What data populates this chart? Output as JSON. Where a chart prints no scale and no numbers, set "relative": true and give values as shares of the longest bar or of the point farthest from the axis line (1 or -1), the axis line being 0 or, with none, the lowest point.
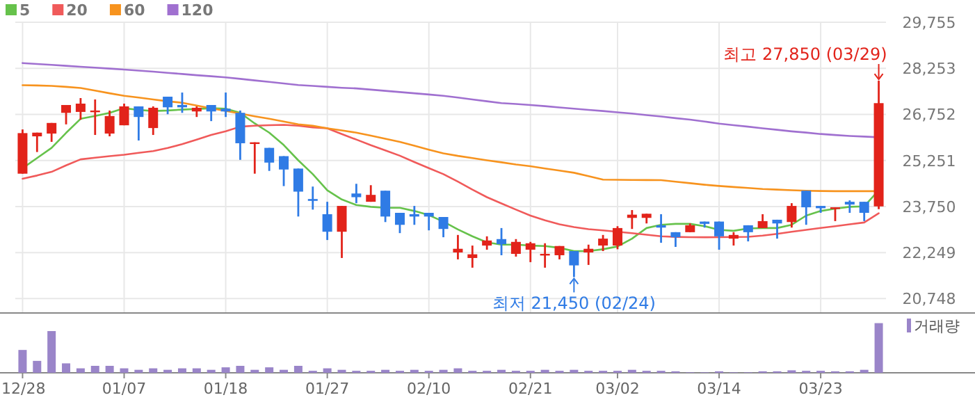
{
  "chart_data": [
    {
      "type": "candlestick",
      "categories": [
        null,
        null,
        null,
        null,
        null,
        null,
        null,
        null,
        null,
        null,
        null,
        null,
        null,
        null,
        null,
        null,
        null,
        null,
        null,
        null,
        null,
        null,
        null,
        null,
        null,
        null,
        null,
        null,
        null,
        null,
        null,
        null,
        null,
        null,
        null,
        null,
        null,
        null,
        null,
        null,
        null,
        null,
        null,
        null,
        null,
        null,
        null,
        null,
        null,
        null,
        null,
        null,
        null,
        null,
        null,
        null,
        null,
        null,
        null,
        null
      ],
      "ohlc": [
        [
          24820,
          26262,
          24820,
          26142
        ],
        [
          26037,
          26157,
          25526,
          26157
        ],
        [
          26127,
          26473,
          25857,
          26473
        ],
        [
          26803,
          27058,
          26427,
          27058
        ],
        [
          26833,
          27284,
          26578,
          27103
        ],
        [
          26833,
          27239,
          26082,
          26878
        ],
        [
          26127,
          26878,
          26037,
          26698
        ],
        [
          26397,
          27103,
          26397,
          27013
        ],
        [
          27013,
          27013,
          25902,
          26668
        ],
        [
          26307,
          27013,
          26082,
          26968
        ],
        [
          27329,
          27329,
          26758,
          26983
        ],
        [
          27058,
          27464,
          26803,
          26983
        ],
        [
          26848,
          27013,
          26668,
          26968
        ],
        [
          27058,
          27058,
          26533,
          26848
        ],
        [
          26938,
          27464,
          26668,
          26848
        ],
        [
          26803,
          26878,
          25271,
          25812
        ],
        [
          25812,
          25842,
          24820,
          25842
        ],
        [
          25661,
          25661,
          24910,
          25181
        ],
        [
          25391,
          25391,
          24415,
          24956
        ],
        [
          24986,
          24986,
          23424,
          24235
        ],
        [
          23994,
          24400,
          23649,
          23934
        ],
        [
          23499,
          23904,
          22658,
          22928
        ],
        [
          22928,
          23769,
          22072,
          23769
        ],
        [
          24174,
          24490,
          23859,
          24054
        ],
        [
          23904,
          24445,
          23904,
          24129
        ],
        [
          24265,
          24265,
          23243,
          23423
        ],
        [
          23544,
          23544,
          22883,
          23153
        ],
        [
          23499,
          23769,
          23153,
          23423
        ],
        [
          23544,
          23544,
          22973,
          23423
        ],
        [
          23408,
          23408,
          22748,
          23018
        ],
        [
          22252,
          22823,
          22027,
          22372
        ],
        [
          22072,
          22477,
          21756,
          22192
        ],
        [
          22477,
          22778,
          22342,
          22642
        ],
        [
          22688,
          23048,
          22162,
          22522
        ],
        [
          22207,
          22688,
          22117,
          22597
        ],
        [
          22342,
          22597,
          21937,
          22552
        ],
        [
          22162,
          22552,
          21756,
          22207
        ],
        [
          22162,
          22462,
          22027,
          22462
        ],
        [
          22297,
          22297,
          21450,
          21831
        ],
        [
          22252,
          22507,
          21846,
          22372
        ],
        [
          22478,
          22823,
          22297,
          22703
        ],
        [
          22478,
          23108,
          22357,
          23048
        ],
        [
          23379,
          23634,
          23018,
          23484
        ],
        [
          23379,
          23514,
          23198,
          23514
        ],
        [
          23138,
          23499,
          22568,
          23063
        ],
        [
          22913,
          22913,
          22433,
          22748
        ],
        [
          22913,
          23198,
          22913,
          23138
        ],
        [
          23259,
          23259,
          23063,
          23184
        ],
        [
          23259,
          23259,
          22342,
          22778
        ],
        [
          22703,
          22913,
          22478,
          22823
        ],
        [
          23138,
          23138,
          22613,
          22913
        ],
        [
          23048,
          23499,
          23048,
          23274
        ],
        [
          23319,
          23319,
          22703,
          23198
        ],
        [
          23244,
          23859,
          23063,
          23769
        ],
        [
          24265,
          24265,
          23154,
          23724
        ],
        [
          23769,
          23769,
          23544,
          23694
        ],
        [
          23694,
          23724,
          23274,
          23724
        ],
        [
          23904,
          23950,
          23544,
          23814
        ],
        [
          23904,
          23904,
          23274,
          23544
        ],
        [
          23754,
          27850,
          23664,
          27119
        ]
      ],
      "colors": [
        "#e2231a",
        "#e2231a",
        "#e2231a",
        "#e2231a",
        "#e2231a",
        "#e2231a",
        "#e2231a",
        "#e2231a",
        "#2f7be5",
        "#e2231a",
        "#2f7be5",
        "#2f7be5",
        "#e2231a",
        "#2f7be5",
        "#2f7be5",
        "#2f7be5",
        "#e2231a",
        "#2f7be5",
        "#2f7be5",
        "#2f7be5",
        "#2f7be5",
        "#2f7be5",
        "#e2231a",
        "#2f7be5",
        "#e2231a",
        "#2f7be5",
        "#2f7be5",
        "#2f7be5",
        "#2f7be5",
        "#2f7be5",
        "#e2231a",
        "#e2231a",
        "#e2231a",
        "#2f7be5",
        "#e2231a",
        "#e2231a",
        "#e2231a",
        "#e2231a",
        "#2f7be5",
        "#e2231a",
        "#e2231a",
        "#e2231a",
        "#e2231a",
        "#e2231a",
        "#2f7be5",
        "#2f7be5",
        "#e2231a",
        "#2f7be5",
        "#2f7be5",
        "#e2231a",
        "#2f7be5",
        "#e2231a",
        "#2f7be5",
        "#e2231a",
        "#2f7be5",
        "#2f7be5",
        "#e2231a",
        "#2f7be5",
        "#2f7be5",
        "#e2231a"
      ],
      "series": [
        {
          "name": "5",
          "type": "line",
          "color": "#66c24b",
          "values": [
            24999,
            25330,
            25661,
            26150,
            26608,
            26700,
            26803,
            26953,
            26900,
            26863,
            26880,
            26908,
            26930,
            26953,
            26938,
            26803,
            26458,
            26157,
            25752,
            25256,
            24805,
            24280,
            23979,
            23799,
            23739,
            23709,
            23709,
            23604,
            23469,
            23258,
            23003,
            22778,
            22582,
            22507,
            22507,
            22477,
            22462,
            22402,
            22297,
            22297,
            22357,
            22448,
            22703,
            23048,
            23154,
            23184,
            23184,
            23108,
            22988,
            22958,
            23033,
            23048,
            23048,
            23154,
            23454,
            23604,
            23679,
            23739,
            23754,
            24280
          ]
        },
        {
          "name": "20",
          "type": "line",
          "color": "#f05a5a",
          "values": [
            24655,
            24760,
            24880,
            25090,
            25286,
            25340,
            25390,
            25436,
            25500,
            25557,
            25660,
            25782,
            25930,
            26082,
            26202,
            26352,
            26383,
            26400,
            26413,
            26383,
            26330,
            26300,
            26110,
            25932,
            25750,
            25580,
            25406,
            25200,
            25000,
            24805,
            24560,
            24300,
            24054,
            23850,
            23650,
            23454,
            23300,
            23170,
            23078,
            23010,
            22973,
            22928,
            22880,
            22830,
            22778,
            22760,
            22750,
            22748,
            22750,
            22755,
            22763,
            22800,
            22860,
            22928,
            22990,
            23050,
            23108,
            23170,
            23229,
            23529
          ]
        },
        {
          "name": "60",
          "type": "line",
          "color": "#f7931e",
          "values": [
            27704,
            27695,
            27680,
            27650,
            27614,
            27530,
            27440,
            27359,
            27300,
            27240,
            27180,
            27133,
            27040,
            26950,
            26863,
            26780,
            26690,
            26608,
            26520,
            26430,
            26380,
            26300,
            26230,
            26157,
            26060,
            25960,
            25857,
            25730,
            25600,
            25481,
            25400,
            25330,
            25256,
            25190,
            25120,
            25061,
            24990,
            24920,
            24850,
            24740,
            24626,
            24620,
            24615,
            24612,
            24611,
            24560,
            24510,
            24460,
            24420,
            24385,
            24355,
            24320,
            24300,
            24280,
            24265,
            24255,
            24250,
            24250,
            24250,
            24250
          ]
        },
        {
          "name": "120",
          "type": "line",
          "color": "#a070d0",
          "values": [
            28425,
            28395,
            28365,
            28335,
            28305,
            28275,
            28245,
            28215,
            28180,
            28145,
            28105,
            28070,
            28030,
            27995,
            27960,
            27910,
            27860,
            27810,
            27760,
            27710,
            27680,
            27650,
            27620,
            27599,
            27560,
            27520,
            27480,
            27440,
            27400,
            27359,
            27300,
            27240,
            27180,
            27120,
            27090,
            27058,
            27020,
            26980,
            26940,
            26900,
            26863,
            26820,
            26780,
            26730,
            26683,
            26630,
            26580,
            26520,
            26450,
            26400,
            26353,
            26300,
            26250,
            26200,
            26160,
            26113,
            26080,
            26050,
            26030,
            26007
          ]
        }
      ],
      "ylim": [
        20280,
        29755
      ],
      "yticks": [
        {
          "value": 20748,
          "label": "20,748"
        },
        {
          "value": 22249,
          "label": "22,249"
        },
        {
          "value": 23750,
          "label": "23,750"
        },
        {
          "value": 25251,
          "label": "25,251"
        },
        {
          "value": 26752,
          "label": "26,752"
        },
        {
          "value": 28253,
          "label": "28,253"
        },
        {
          "value": 29755,
          "label": "29,755"
        }
      ],
      "grid": true,
      "legend": "top left",
      "tick_labels": "y",
      "annotations": [
        "최고 27,850 (03/29)",
        "최저 21,450 (02/24)"
      ]
    },
    {
      "type": "bar",
      "categories": [
        "12/28",
        null,
        null,
        null,
        null,
        null,
        null,
        "01/07",
        null,
        null,
        null,
        null,
        null,
        null,
        "01/18",
        null,
        null,
        null,
        null,
        null,
        null,
        "01/27",
        null,
        null,
        null,
        null,
        null,
        null,
        "02/10",
        null,
        null,
        null,
        null,
        null,
        null,
        "02/21",
        null,
        null,
        null,
        null,
        null,
        "03/02",
        null,
        null,
        null,
        null,
        null,
        null,
        "03/14",
        null,
        null,
        null,
        null,
        null,
        null,
        "03/23",
        null,
        null,
        null,
        null
      ],
      "relative": true,
      "legend": "right",
      "tick_labels": "x",
      "series": [
        {
          "name": "거래량",
          "color": "#9a85c9",
          "values": [
            0.46,
            0.24,
            0.84,
            0.19,
            0.09,
            0.14,
            0.14,
            0.09,
            0.06,
            0.09,
            0.06,
            0.09,
            0.09,
            0.06,
            0.11,
            0.14,
            0.06,
            0.11,
            0.06,
            0.14,
            0.04,
            0.09,
            0.06,
            0.04,
            0.04,
            0.06,
            0.04,
            0.06,
            0.04,
            0.06,
            0.09,
            0.04,
            0.04,
            0.06,
            0.04,
            0.04,
            0.06,
            0.04,
            0.06,
            0.04,
            0.04,
            0.04,
            0.06,
            0.04,
            0.04,
            0.03,
            0.01,
            0.01,
            0.03,
            0.01,
            0.01,
            0.03,
            0.03,
            0.05,
            0.04,
            0.04,
            0.03,
            0.03,
            0.06,
            1
          ]
        }
      ]
    }
  ]
}
